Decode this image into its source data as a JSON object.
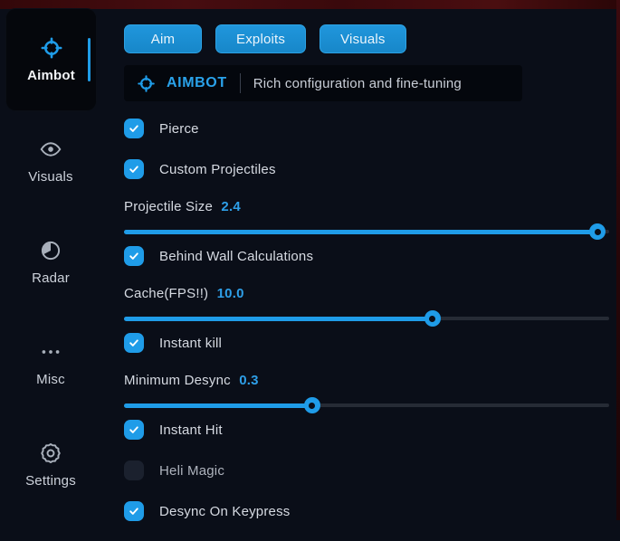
{
  "theme": {
    "accent": "#1f9ce8",
    "background": "#0a0e18",
    "panel": "#04070d",
    "edge_red": "#3c0a0e"
  },
  "sidebar": {
    "items": [
      {
        "id": "aimbot",
        "label": "Aimbot",
        "icon": "crosshair-icon",
        "active": true
      },
      {
        "id": "visuals",
        "label": "Visuals",
        "icon": "eye-icon",
        "active": false
      },
      {
        "id": "radar",
        "label": "Radar",
        "icon": "radar-icon",
        "active": false
      },
      {
        "id": "misc",
        "label": "Misc",
        "icon": "ellipsis-icon",
        "active": false
      },
      {
        "id": "settings",
        "label": "Settings",
        "icon": "gear-icon",
        "active": false
      }
    ]
  },
  "tabs": [
    {
      "id": "aim",
      "label": "Aim"
    },
    {
      "id": "exploits",
      "label": "Exploits"
    },
    {
      "id": "visuals",
      "label": "Visuals"
    }
  ],
  "header": {
    "icon": "crosshair-icon",
    "title": "AIMBOT",
    "subtitle": "Rich configuration and fine-tuning"
  },
  "controls": [
    {
      "type": "checkbox",
      "id": "pierce",
      "label": "Pierce",
      "checked": true
    },
    {
      "type": "checkbox",
      "id": "custom-projectiles",
      "label": "Custom Projectiles",
      "checked": true
    },
    {
      "type": "slider",
      "id": "projectile-size",
      "label": "Projectile Size",
      "value": "2.4",
      "percent": 97.6
    },
    {
      "type": "checkbox",
      "id": "behind-wall-calcs",
      "label": "Behind Wall Calculations",
      "checked": true
    },
    {
      "type": "slider",
      "id": "cache-fps",
      "label": "Cache(FPS!!)",
      "value": "10.0",
      "percent": 63.6
    },
    {
      "type": "checkbox",
      "id": "instant-kill",
      "label": "Instant kill",
      "checked": true
    },
    {
      "type": "slider",
      "id": "minimum-desync",
      "label": "Minimum Desync",
      "value": "0.3",
      "percent": 38.8
    },
    {
      "type": "checkbox",
      "id": "instant-hit",
      "label": "Instant Hit",
      "checked": true
    },
    {
      "type": "checkbox",
      "id": "heli-magic",
      "label": "Heli Magic",
      "checked": false
    },
    {
      "type": "checkbox",
      "id": "desync-on-keypress",
      "label": "Desync On Keypress",
      "checked": true
    }
  ]
}
